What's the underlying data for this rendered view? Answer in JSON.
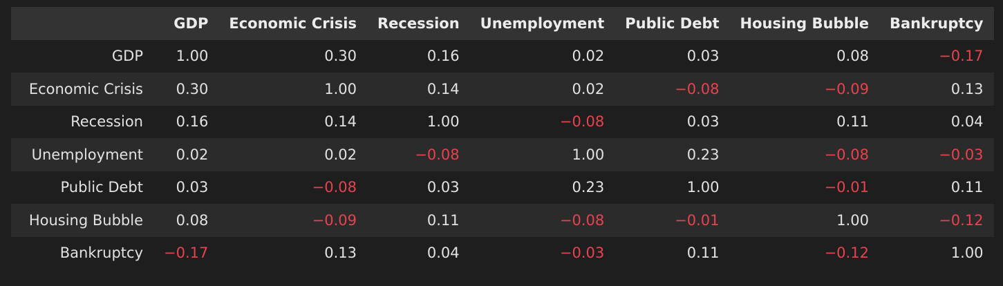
{
  "chart_data": {
    "type": "table",
    "title": "",
    "columns": [
      "GDP",
      "Economic Crisis",
      "Recession",
      "Unemployment",
      "Public Debt",
      "Housing Bubble",
      "Bankruptcy"
    ],
    "rows": [
      {
        "label": "GDP",
        "values": [
          "1.00",
          "0.30",
          "0.16",
          "0.02",
          "0.03",
          "0.08",
          "-0.17"
        ]
      },
      {
        "label": "Economic Crisis",
        "values": [
          "0.30",
          "1.00",
          "0.14",
          "0.02",
          "-0.08",
          "-0.09",
          "0.13"
        ]
      },
      {
        "label": "Recession",
        "values": [
          "0.16",
          "0.14",
          "1.00",
          "-0.08",
          "0.03",
          "0.11",
          "0.04"
        ]
      },
      {
        "label": "Unemployment",
        "values": [
          "0.02",
          "0.02",
          "-0.08",
          "1.00",
          "0.23",
          "-0.08",
          "-0.03"
        ]
      },
      {
        "label": "Public Debt",
        "values": [
          "0.03",
          "-0.08",
          "0.03",
          "0.23",
          "1.00",
          "-0.01",
          "0.11"
        ]
      },
      {
        "label": "Housing Bubble",
        "values": [
          "0.08",
          "-0.09",
          "0.11",
          "-0.08",
          "-0.01",
          "1.00",
          "-0.12"
        ]
      },
      {
        "label": "Bankruptcy",
        "values": [
          "-0.17",
          "0.13",
          "0.04",
          "-0.03",
          "0.11",
          "-0.12",
          "1.00"
        ]
      }
    ],
    "colors": {
      "negative": "#e8424f",
      "positive": "#e2e2e2",
      "header_bg": "#333333",
      "row_alt_bg": "#2b2b2b",
      "background": "#1e1e1e"
    }
  }
}
